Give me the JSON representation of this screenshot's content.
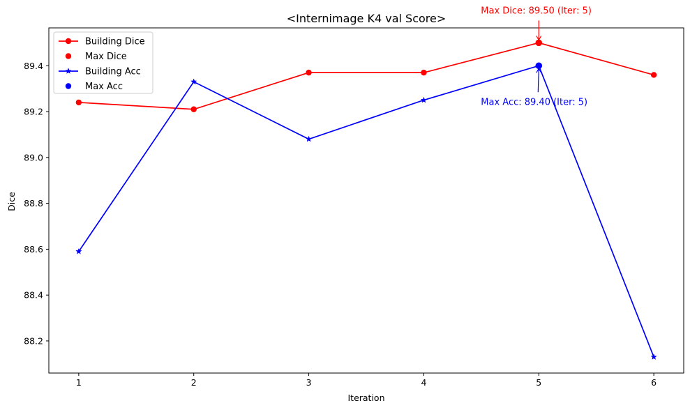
{
  "chart_data": {
    "type": "line",
    "title": "<Internimage K4 val Score>",
    "xlabel": "Iteration",
    "ylabel": "Dice",
    "x": [
      1,
      2,
      3,
      4,
      5,
      6
    ],
    "xticks": [
      "1",
      "2",
      "3",
      "4",
      "5",
      "6"
    ],
    "yticks": [
      "88.2",
      "88.4",
      "88.6",
      "88.8",
      "89.0",
      "89.2",
      "89.4"
    ],
    "xlim": [
      0.74,
      6.26
    ],
    "ylim": [
      88.06,
      89.565
    ],
    "grid": false,
    "legend_position": "upper-left",
    "series": [
      {
        "name": "Building Dice",
        "values": [
          89.24,
          89.21,
          89.37,
          89.37,
          89.5,
          89.36
        ],
        "color": "#ff0000",
        "marker": "circle"
      },
      {
        "name": "Building Acc",
        "values": [
          88.59,
          89.33,
          89.08,
          89.25,
          89.4,
          88.13
        ],
        "color": "#0000ff",
        "marker": "star"
      }
    ],
    "max_points": [
      {
        "name": "Max Dice",
        "x": 5,
        "y": 89.5,
        "color": "#ff0000"
      },
      {
        "name": "Max Acc",
        "x": 5,
        "y": 89.4,
        "color": "#0000ff"
      }
    ],
    "annotations": [
      {
        "text": "Max Dice: 89.50 (Iter: 5)",
        "x": 5,
        "y": 89.5,
        "color": "#ff0000"
      },
      {
        "text": "Max Acc: 89.40 (Iter: 5)",
        "x": 5,
        "y": 89.4,
        "color": "#0000ff"
      }
    ],
    "legend": [
      "Building Dice",
      "Max Dice",
      "Building Acc",
      "Max Acc"
    ]
  }
}
